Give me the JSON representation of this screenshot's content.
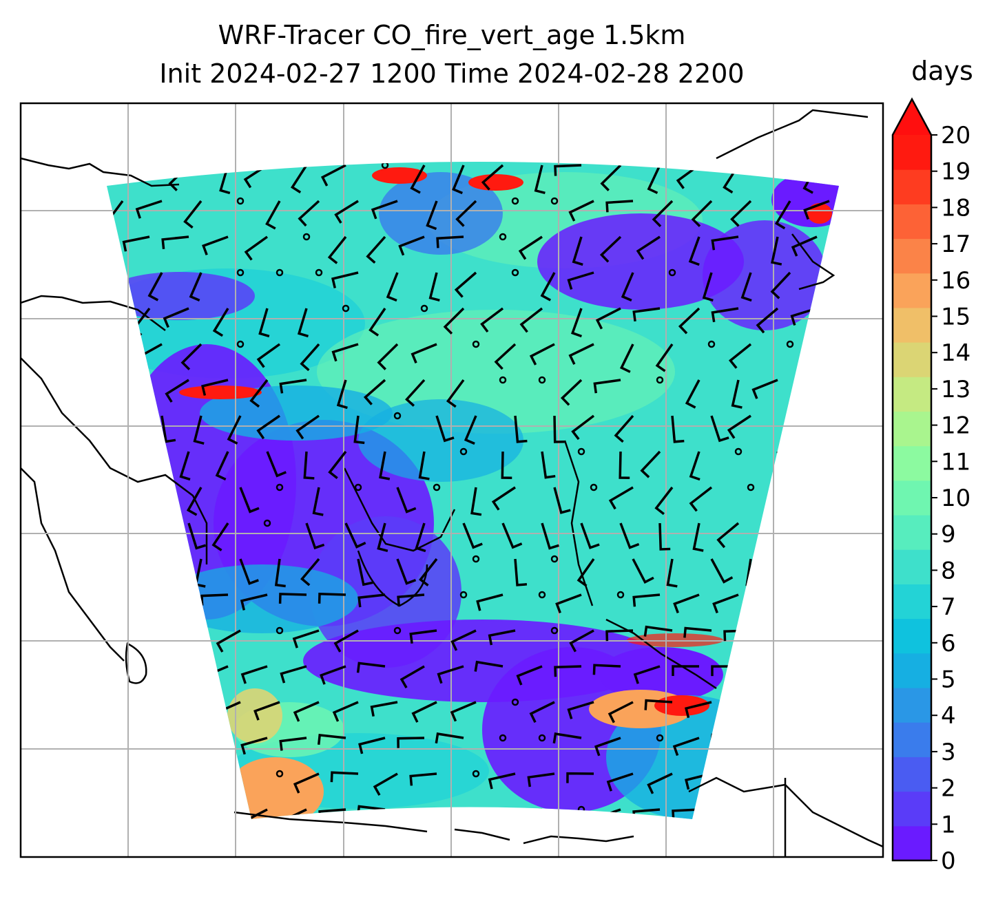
{
  "title_line1": "WRF-Tracer CO_fire_vert_age 1.5km",
  "title_line2": "Init 2024-02-27 1200 Time 2024-02-28 2200",
  "colorbar": {
    "label": "days",
    "min": 0,
    "max": 20,
    "extend": "max",
    "ticks": [
      "0",
      "1",
      "2",
      "3",
      "4",
      "5",
      "6",
      "7",
      "8",
      "9",
      "10",
      "11",
      "12",
      "13",
      "14",
      "15",
      "16",
      "17",
      "18",
      "19",
      "20"
    ],
    "colors": [
      "#6a1bff",
      "#5a3cf8",
      "#4a5cf2",
      "#3a7cec",
      "#2a97e6",
      "#16afe2",
      "#0fc2de",
      "#23d3d6",
      "#3ee0cb",
      "#57edbe",
      "#6ff6b0",
      "#8cfaa0",
      "#a9f58e",
      "#c5ea82",
      "#dbd574",
      "#f0bf68",
      "#faa35a",
      "#fb8348",
      "#fd6236",
      "#fe3c20",
      "#ff1a10"
    ],
    "extend_color": "#ff0f0f"
  },
  "map": {
    "projection": "lambert-conformal",
    "gridlines": "on",
    "field_colors": {
      "dominant": "#3ee0cb",
      "low": "#6a1bff",
      "high": "#ff1a10"
    }
  }
}
